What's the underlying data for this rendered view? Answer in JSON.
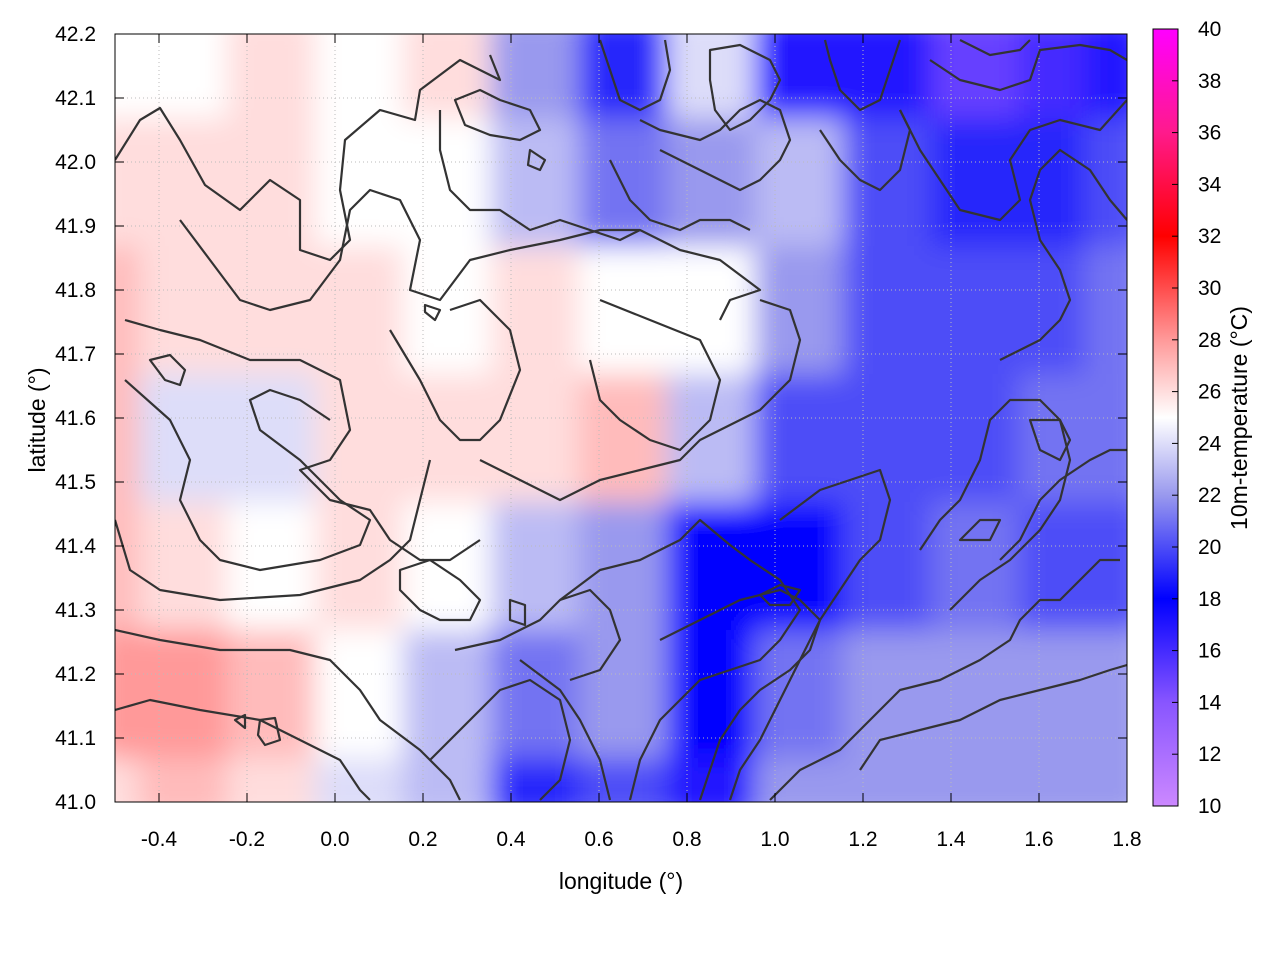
{
  "chart_data": {
    "type": "heatmap",
    "xlabel": "longitude (°)",
    "ylabel": "latitude (°)",
    "colorbar_label": "10m-temperature (°C)",
    "xlim": [
      -0.5,
      1.8
    ],
    "ylim": [
      41.0,
      42.2
    ],
    "x_ticks": [
      "-0.4",
      "-0.2",
      "0.0",
      "0.2",
      "0.4",
      "0.6",
      "0.8",
      "1.0",
      "1.2",
      "1.4",
      "1.6",
      "1.8"
    ],
    "y_ticks": [
      "41.0",
      "41.1",
      "41.2",
      "41.3",
      "41.4",
      "41.5",
      "41.6",
      "41.7",
      "41.8",
      "41.9",
      "42.0",
      "42.1",
      "42.2"
    ],
    "colorbar_range": [
      10,
      40
    ],
    "colorbar_ticks": [
      "10",
      "12",
      "14",
      "16",
      "18",
      "20",
      "22",
      "24",
      "26",
      "28",
      "30",
      "32",
      "34",
      "36",
      "38",
      "40"
    ],
    "colormap": [
      {
        "value": 10,
        "color": "#cc88ff"
      },
      {
        "value": 14,
        "color": "#8855ff"
      },
      {
        "value": 18,
        "color": "#0000ff"
      },
      {
        "value": 22,
        "color": "#9999ee"
      },
      {
        "value": 25,
        "color": "#ffffff"
      },
      {
        "value": 28,
        "color": "#ff9999"
      },
      {
        "value": 32,
        "color": "#ff0000"
      },
      {
        "value": 36,
        "color": "#ff1a8c"
      },
      {
        "value": 40,
        "color": "#ff00ff"
      }
    ],
    "contour_color": "#333333",
    "grid": true,
    "field_grid": {
      "x": [
        -0.5,
        -0.3,
        -0.1,
        0.1,
        0.3,
        0.5,
        0.7,
        0.9,
        1.1,
        1.3,
        1.5,
        1.7,
        1.8
      ],
      "y": [
        41.0,
        41.2,
        41.4,
        41.6,
        41.8,
        42.0,
        42.2
      ],
      "values": [
        [
          26,
          27,
          26,
          24,
          23,
          19,
          20,
          17,
          22,
          22,
          22,
          22,
          22
        ],
        [
          28,
          28,
          27,
          25,
          23,
          21,
          22,
          18,
          21,
          22,
          22,
          22,
          22
        ],
        [
          27,
          26,
          25,
          26,
          25,
          23,
          22,
          18,
          18,
          20,
          21,
          20,
          20
        ],
        [
          27,
          24,
          24,
          26,
          26,
          26,
          27,
          23,
          20,
          20,
          20,
          21,
          21
        ],
        [
          27,
          26,
          26,
          26,
          25,
          26,
          25,
          25,
          22,
          20,
          20,
          20,
          21
        ],
        [
          26,
          26,
          26,
          25,
          25,
          23,
          21,
          22,
          23,
          20,
          19,
          19,
          20
        ],
        [
          25,
          25,
          26,
          25,
          26,
          22,
          19,
          24,
          17,
          17,
          15,
          16,
          17
        ]
      ]
    }
  }
}
